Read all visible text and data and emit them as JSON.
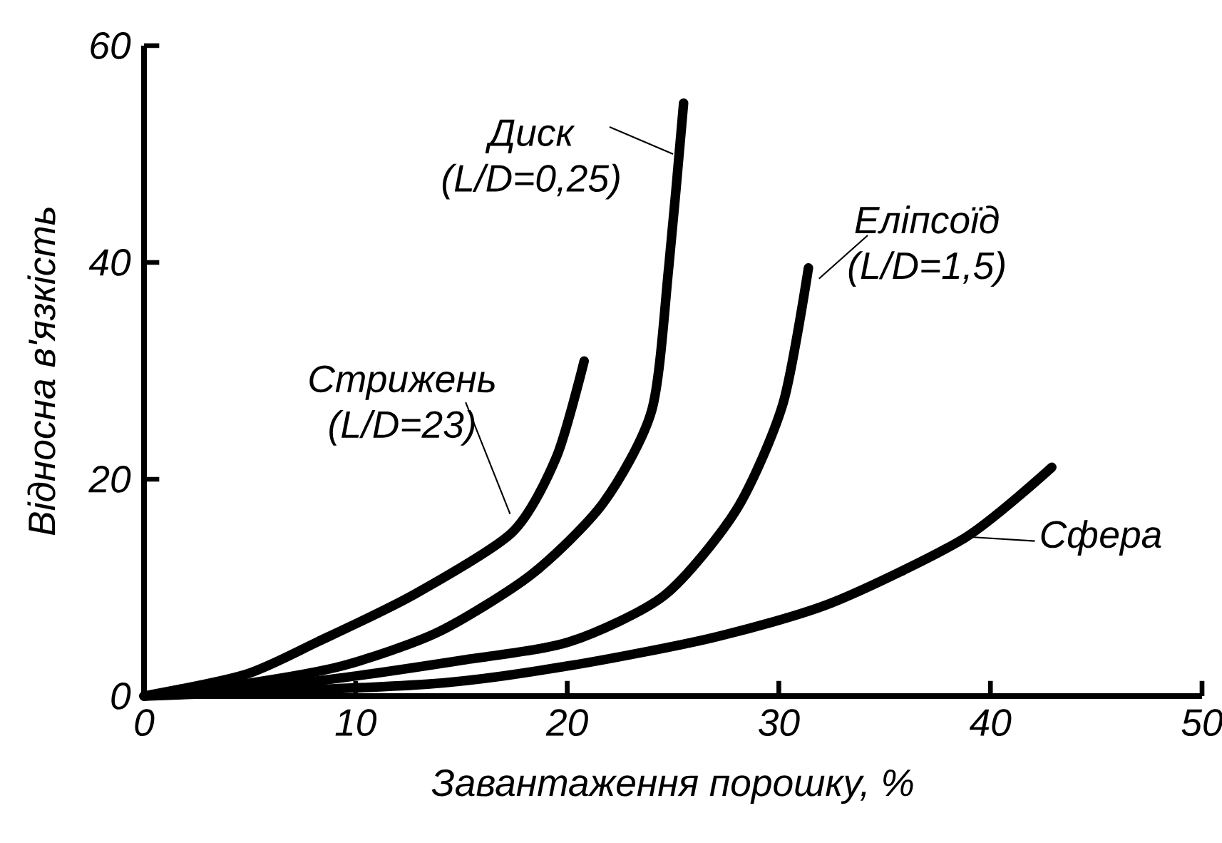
{
  "chart_data": {
    "type": "line",
    "xlabel": "Завантаження порошку, %",
    "ylabel": "Відносна в'язкість",
    "xlim": [
      0,
      50
    ],
    "ylim": [
      0,
      60
    ],
    "xticks": [
      0,
      10,
      20,
      30,
      40,
      50
    ],
    "yticks": [
      0,
      20,
      40,
      60
    ],
    "grid": false,
    "marker": "none",
    "line_style": "solid",
    "series": [
      {
        "name": "Стрижень (L/D=23)",
        "color": "#000000",
        "x": [
          0,
          4.8,
          8.2,
          12.7,
          17.4,
          19.5,
          20.8
        ],
        "values": [
          0,
          2,
          5,
          9.3,
          15.1,
          22.1,
          30.9
        ]
      },
      {
        "name": "Диск (L/D=0,25)",
        "color": "#000000",
        "x": [
          0,
          5,
          9.4,
          13.9,
          18.3,
          21.7,
          24,
          24.8,
          25.5
        ],
        "values": [
          0,
          1.2,
          2.8,
          5.9,
          11.2,
          17.8,
          26.4,
          39.6,
          54.7
        ]
      },
      {
        "name": "Еліпсоїд (L/D=1,5)",
        "color": "#000000",
        "x": [
          0,
          8.2,
          15,
          20.1,
          24.6,
          28,
          30.2,
          31.4
        ],
        "values": [
          0,
          1.4,
          3.3,
          5,
          9.3,
          17.2,
          27,
          39.5
        ]
      },
      {
        "name": "Сфера",
        "color": "#000000",
        "x": [
          0,
          13.4,
          20.1,
          26.9,
          32.5,
          38.8,
          42.9
        ],
        "values": [
          0,
          1.1,
          2.8,
          5.4,
          8.6,
          14.6,
          21.1
        ]
      }
    ]
  }
}
